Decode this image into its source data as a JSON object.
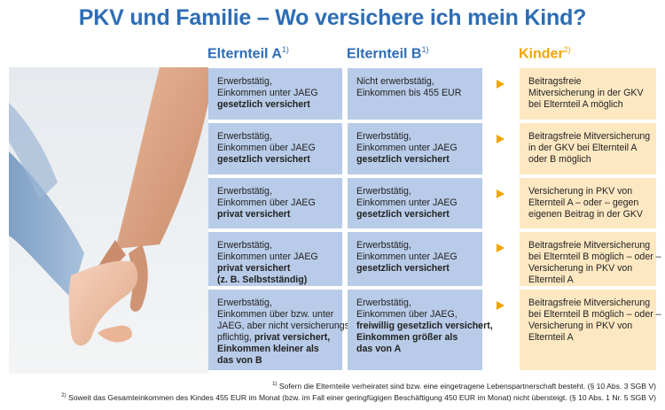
{
  "title": "PKV und Familie – Wo versichere ich mein Kind?",
  "headers": {
    "a": "Elternteil A",
    "a_sup": "1)",
    "b": "Elternteil B",
    "b_sup": "1)",
    "kids": "Kinder",
    "kids_sup": "2)"
  },
  "rows": [
    {
      "a": [
        {
          "t": "Erwerbstätig,",
          "b": false
        },
        {
          "t": "Einkommen unter JAEG",
          "b": false
        },
        {
          "t": "gesetzlich versichert",
          "b": true
        }
      ],
      "b": [
        {
          "t": "Nicht erwerbstätig,",
          "b": false
        },
        {
          "t": "Einkommen bis 455 EUR",
          "b": false
        }
      ],
      "k": [
        {
          "t": "Beitragsfreie",
          "b": false
        },
        {
          "t": "Mitversicherung in der GKV",
          "b": false
        },
        {
          "t": "bei Elternteil A möglich",
          "b": false
        }
      ]
    },
    {
      "a": [
        {
          "t": "Erwerbstätig,",
          "b": false
        },
        {
          "t": "Einkommen über JAEG",
          "b": false
        },
        {
          "t": "gesetzlich versichert",
          "b": true
        }
      ],
      "b": [
        {
          "t": "Erwerbstätig,",
          "b": false
        },
        {
          "t": "Einkommen unter JAEG",
          "b": false
        },
        {
          "t": "gesetzlich versichert",
          "b": true
        }
      ],
      "k": [
        {
          "t": "Beitragsfreie Mitversicherung",
          "b": false
        },
        {
          "t": "in der GKV bei Elternteil A",
          "b": false
        },
        {
          "t": "oder B möglich",
          "b": false
        }
      ]
    },
    {
      "a": [
        {
          "t": "Erwerbstätig,",
          "b": false
        },
        {
          "t": "Einkommen über JAEG",
          "b": false
        },
        {
          "t": "privat versichert",
          "b": true
        }
      ],
      "b": [
        {
          "t": "Erwerbstätig,",
          "b": false
        },
        {
          "t": "Einkommen unter JAEG",
          "b": false
        },
        {
          "t": "gesetzlich versichert",
          "b": true
        }
      ],
      "k": [
        {
          "t": "Versicherung in PKV von",
          "b": false
        },
        {
          "t": "Elternteil A – oder – gegen",
          "b": false
        },
        {
          "t": "eigenen Beitrag in der GKV",
          "b": false
        }
      ]
    },
    {
      "a": [
        {
          "t": "Erwerbstätig,",
          "b": false
        },
        {
          "t": "Einkommen unter JAEG",
          "b": false
        },
        {
          "t": "privat versichert",
          "b": true
        },
        {
          "t": "(z. B. Selbstständig)",
          "b": true
        }
      ],
      "b": [
        {
          "t": "Erwerbstätig,",
          "b": false
        },
        {
          "t": "Einkommen unter JAEG",
          "b": false
        },
        {
          "t": "gesetzlich versichert",
          "b": true
        }
      ],
      "k": [
        {
          "t": "Beitragsfreie Mitversicherung",
          "b": false
        },
        {
          "t": "bei Elternteil B möglich – oder –",
          "b": false
        },
        {
          "t": "Versicherung in PKV von",
          "b": false
        },
        {
          "t": "Elternteil A",
          "b": false
        }
      ]
    },
    {
      "a": [
        {
          "t": "Erwerbstätig,",
          "b": false
        },
        {
          "t": "Einkommen über bzw. unter",
          "b": false
        },
        {
          "t": "JAEG, aber nicht versicherungs-",
          "b": false
        },
        {
          "t": "pflichtig, privat versichert,",
          "b": false,
          "split": [
            "pflichtig, ",
            "privat versichert,"
          ]
        },
        {
          "t": "Einkommen kleiner als",
          "b": true
        },
        {
          "t": "das von B",
          "b": true
        }
      ],
      "b": [
        {
          "t": "Erwerbstätig,",
          "b": false
        },
        {
          "t": "Einkommen über JAEG,",
          "b": false
        },
        {
          "t": "freiwillig gesetzlich versichert,",
          "b": true
        },
        {
          "t": "Einkommen größer als",
          "b": true
        },
        {
          "t": "das von A",
          "b": true
        }
      ],
      "k": [
        {
          "t": "Beitragsfreie Mitversicherung",
          "b": false
        },
        {
          "t": "bei Elternteil B möglich – oder –",
          "b": false
        },
        {
          "t": "Versicherung in PKV von",
          "b": false
        },
        {
          "t": "Elternteil A",
          "b": false
        }
      ]
    }
  ],
  "footnotes": {
    "f1_mark": "1)",
    "f1": "Sofern die Elternteile verheiratet sind bzw. eine eingetragene Lebenspartnerschaft besteht. (§ 10 Abs. 3 SGB V)",
    "f2_mark": "2)",
    "f2": "Soweit das Gesamteinkommen des Kindes 455 EUR im Monat (bzw. im Fall einer geringfügigen Beschäftigung 450 EUR im Monat) nicht übersteigt. (§ 10 Abs. 1 Nr. 5 SGB V)"
  },
  "colors": {
    "title": "#2d6db5",
    "kids_header": "#f0a500",
    "parent_cell": "#b8cbe8",
    "kid_cell": "#fde8c2",
    "arrow": "#f0a500"
  },
  "icons": {
    "arrow": "triangle-right-icon",
    "photo": "adult-holding-child-hand-photo"
  }
}
